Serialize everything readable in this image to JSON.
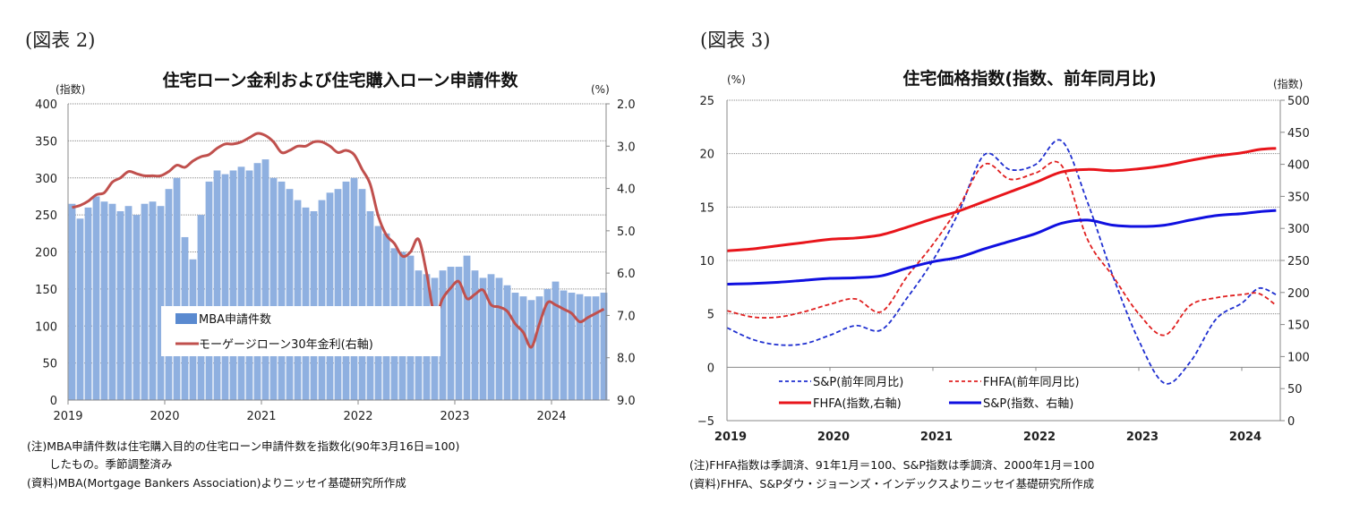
{
  "figure2": {
    "label": "(図表 2)",
    "notes": [
      "(注)MBA申請件数は住宅購入目的の住宅ローン申請件数を指数化(90年3月16日=100)",
      "　　したもの。季節調整済み",
      "(資料)MBA(Mortgage Bankers Association)よりニッセイ基礎研究所作成"
    ]
  },
  "figure3": {
    "label": "(図表 3)",
    "notes": [
      "(注)FHFA指数は季調済、91年1月＝100、S&P指数は季調済、2000年1月＝100",
      "(資料)FHFA、S&Pダウ・ジョーンズ・インデックスよりニッセイ基礎研究所作成"
    ]
  },
  "chart_data": [
    {
      "type": "bar+line",
      "title": "住宅ローン金利および住宅購入ローン申請件数",
      "ylabel_left": "(指数)",
      "ylabel_right": "(%)",
      "ylim_left": [
        0,
        400
      ],
      "yticks_left": [
        "0",
        "50",
        "100",
        "150",
        "200",
        "250",
        "300",
        "350",
        "400"
      ],
      "ylim_right_inverted": [
        2.0,
        9.0
      ],
      "yticks_right": [
        "2.0",
        "3.0",
        "4.0",
        "5.0",
        "6.0",
        "7.0",
        "8.0",
        "9.0"
      ],
      "xticks": [
        "2019",
        "2020",
        "2021",
        "2022",
        "2023",
        "2024"
      ],
      "grid": true,
      "legend_position": "center-left",
      "start": "2019-01",
      "frequency": "monthly",
      "series": [
        {
          "name": "MBA申請件数",
          "type": "bar",
          "axis": "left",
          "color": "#8fb0e0",
          "values": [
            265,
            245,
            260,
            275,
            268,
            265,
            255,
            262,
            250,
            265,
            268,
            262,
            285,
            300,
            220,
            190,
            250,
            295,
            310,
            305,
            310,
            315,
            310,
            320,
            325,
            300,
            295,
            285,
            270,
            260,
            255,
            270,
            280,
            285,
            295,
            300,
            285,
            255,
            235,
            225,
            205,
            200,
            195,
            175,
            170,
            165,
            175,
            180,
            180,
            195,
            175,
            165,
            170,
            165,
            155,
            145,
            140,
            135,
            140,
            150,
            160,
            148,
            145,
            143,
            140,
            140,
            145
          ]
        },
        {
          "name": "モーゲージローン30年金利(右軸)",
          "type": "line",
          "axis": "right",
          "color": "#c0504d",
          "values": [
            4.45,
            4.4,
            4.3,
            4.15,
            4.1,
            3.85,
            3.75,
            3.6,
            3.65,
            3.7,
            3.7,
            3.7,
            3.6,
            3.45,
            3.5,
            3.35,
            3.25,
            3.2,
            3.05,
            2.95,
            2.95,
            2.9,
            2.8,
            2.7,
            2.75,
            2.9,
            3.15,
            3.1,
            3.0,
            3.0,
            2.9,
            2.9,
            3.0,
            3.15,
            3.1,
            3.2,
            3.55,
            3.9,
            4.65,
            5.1,
            5.3,
            5.6,
            5.5,
            5.2,
            6.0,
            7.0,
            6.6,
            6.35,
            6.2,
            6.6,
            6.5,
            6.4,
            6.75,
            6.8,
            6.9,
            7.2,
            7.4,
            7.75,
            7.2,
            6.7,
            6.75,
            6.85,
            6.95,
            7.15,
            7.05,
            6.95,
            6.85
          ]
        }
      ]
    },
    {
      "type": "line",
      "title": "住宅価格指数(指数、前年同月比)",
      "ylabel_left": "(%)",
      "ylabel_right": "(指数)",
      "ylim_left": [
        -5,
        25
      ],
      "yticks_left": [
        "−5",
        "0",
        "5",
        "10",
        "15",
        "20",
        "25"
      ],
      "ylim_right": [
        0,
        500
      ],
      "yticks_right": [
        "0",
        "50",
        "100",
        "150",
        "200",
        "250",
        "300",
        "350",
        "400",
        "450",
        "500"
      ],
      "xticks": [
        "2019",
        "2020",
        "2021",
        "2022",
        "2023",
        "2024"
      ],
      "grid": true,
      "legend_position": "bottom-left",
      "x": [
        "2019-01",
        "2019-04",
        "2019-07",
        "2019-10",
        "2020-01",
        "2020-04",
        "2020-07",
        "2020-10",
        "2021-01",
        "2021-04",
        "2021-07",
        "2021-10",
        "2022-01",
        "2022-04",
        "2022-07",
        "2022-10",
        "2023-01",
        "2023-04",
        "2023-07",
        "2023-10",
        "2024-01",
        "2024-03",
        "2024-05"
      ],
      "series": [
        {
          "name": "S&P(前年同月比)",
          "axis": "left",
          "style": "dashed",
          "color": "#1f2fd0",
          "values": [
            3.7,
            2.6,
            2.1,
            2.2,
            3.0,
            3.9,
            3.5,
            6.5,
            10.0,
            14.5,
            19.9,
            18.5,
            19.0,
            21.2,
            15.5,
            8.5,
            2.5,
            -1.5,
            0.5,
            4.5,
            6.0,
            7.4,
            6.8
          ]
        },
        {
          "name": "FHFA(前年同月比)",
          "axis": "left",
          "style": "dashed",
          "color": "#e02020",
          "values": [
            5.3,
            4.7,
            4.7,
            5.2,
            5.9,
            6.4,
            5.2,
            8.5,
            11.5,
            15.0,
            19.0,
            17.6,
            18.2,
            18.9,
            12.0,
            8.5,
            5.0,
            3.0,
            5.8,
            6.5,
            6.8,
            6.9,
            5.8
          ]
        },
        {
          "name": "FHFA(指数,右軸)",
          "axis": "right",
          "style": "solid",
          "color": "#e8151b",
          "values": [
            265,
            268,
            273,
            278,
            283,
            285,
            290,
            302,
            315,
            327,
            342,
            357,
            372,
            388,
            392,
            390,
            393,
            398,
            406,
            413,
            418,
            423,
            425
          ]
        },
        {
          "name": "S&P(指数、右軸)",
          "axis": "right",
          "style": "solid",
          "color": "#1010e0",
          "values": [
            213,
            214,
            216,
            219,
            222,
            223,
            226,
            238,
            248,
            255,
            268,
            280,
            292,
            308,
            313,
            305,
            303,
            305,
            313,
            320,
            323,
            326,
            328
          ]
        }
      ]
    }
  ]
}
